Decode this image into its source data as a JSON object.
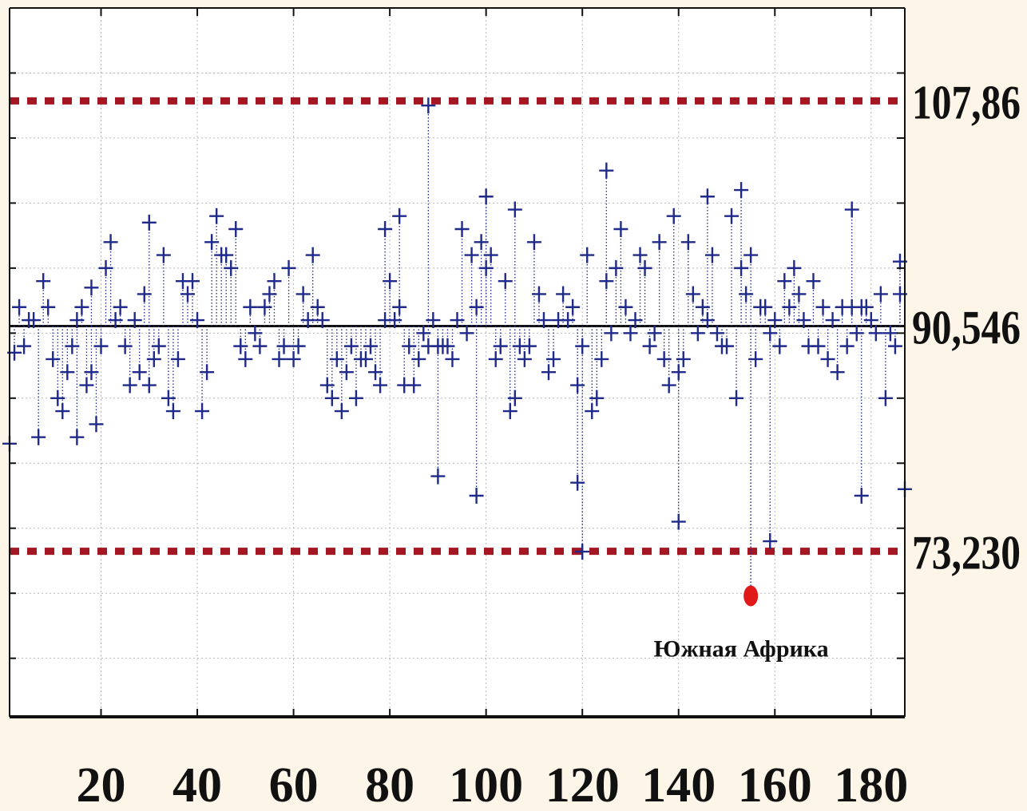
{
  "chart_data": {
    "type": "scatter",
    "title": "",
    "xlabel": "",
    "ylabel": "",
    "xlim": [
      1,
      187
    ],
    "ylim": [
      60.5,
      115
    ],
    "x_ticks": [
      20,
      40,
      60,
      80,
      100,
      120,
      140,
      160,
      180
    ],
    "x_tick_labels": [
      "20",
      "40",
      "60",
      "80",
      "100",
      "120",
      "140",
      "160",
      "180"
    ],
    "grid": true,
    "legend": "none",
    "center_line": {
      "value": 90.546,
      "label": "90,546",
      "color": "#111111"
    },
    "control_limits": [
      {
        "name": "upper",
        "value": 107.86,
        "label": "107,86",
        "color": "#a31622"
      },
      {
        "name": "lower",
        "value": 73.23,
        "label": "73,230",
        "color": "#a31622"
      }
    ],
    "marker_color": "#1f2a8a",
    "series": [
      {
        "values": [
          81.5,
          88.5,
          92,
          89,
          91,
          91,
          82,
          94,
          92,
          88,
          85,
          84,
          87,
          89,
          91,
          92,
          86,
          87,
          83,
          89,
          95,
          97,
          91,
          92,
          89,
          86,
          91,
          87,
          93,
          86,
          88,
          89,
          96,
          85,
          84,
          88,
          94,
          93,
          94,
          91,
          84,
          87,
          97,
          99,
          96,
          96,
          95,
          98,
          89,
          88,
          92,
          90,
          89,
          92,
          93,
          94,
          88,
          89,
          95,
          88,
          89,
          93,
          91,
          96,
          92,
          91,
          86,
          85,
          88,
          84,
          87,
          89,
          85,
          88,
          88,
          89,
          87,
          86,
          91,
          94,
          91,
          92,
          86,
          89,
          86,
          88,
          90,
          89,
          91,
          89,
          89,
          89,
          88,
          91,
          98,
          90,
          96,
          92,
          97,
          95,
          96,
          88,
          89,
          94,
          84,
          85,
          89,
          88,
          89,
          97,
          93,
          91,
          87,
          88,
          91,
          93,
          91,
          92,
          86,
          89,
          96,
          84,
          85,
          88,
          94,
          90,
          95,
          98,
          92,
          90,
          91,
          96,
          95,
          89,
          90,
          97,
          88,
          86,
          99,
          87,
          88,
          97,
          93,
          90,
          92,
          91,
          96,
          90,
          89,
          89,
          99,
          85,
          95,
          93,
          96,
          88,
          92,
          92,
          90,
          91,
          89,
          94,
          92,
          95,
          93,
          91,
          89,
          94,
          89,
          92,
          88,
          91,
          87,
          92,
          89,
          92,
          90,
          92,
          92,
          91,
          90,
          93,
          85,
          90,
          89,
          93,
          78
        ],
        "highlight_points": [
          {
            "x": 88,
            "y": 107.5
          },
          {
            "x": 125,
            "y": 102.5
          },
          {
            "x": 153,
            "y": 101
          },
          {
            "x": 146,
            "y": 100.5
          },
          {
            "x": 100,
            "y": 100.5
          },
          {
            "x": 106,
            "y": 99.5
          },
          {
            "x": 176,
            "y": 99.5
          },
          {
            "x": 82,
            "y": 99
          },
          {
            "x": 30,
            "y": 98.5
          },
          {
            "x": 79,
            "y": 98
          },
          {
            "x": 186,
            "y": 95.5
          },
          {
            "x": 18,
            "y": 93.5
          },
          {
            "x": 15,
            "y": 82
          },
          {
            "x": 90,
            "y": 79
          },
          {
            "x": 98,
            "y": 77.5
          },
          {
            "x": 119,
            "y": 78.5
          },
          {
            "x": 140,
            "y": 75.5
          },
          {
            "x": 159,
            "y": 74
          },
          {
            "x": 178,
            "y": 77.5
          },
          {
            "x": 120,
            "y": 73.2
          }
        ]
      }
    ],
    "highlighted_outlier": {
      "x": 155,
      "y": 69.8,
      "label": "Южная Африка",
      "color": "#e01a1a"
    }
  }
}
